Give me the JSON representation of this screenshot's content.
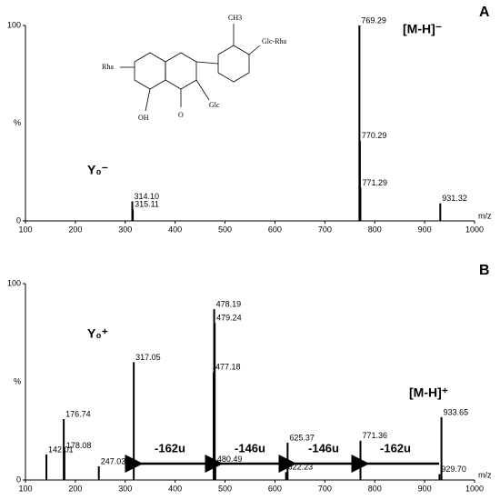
{
  "chart_data": [
    {
      "type": "bar",
      "panel": "A",
      "x_label": "m/z",
      "y_label": "%",
      "color": "#000000",
      "xlim": [
        100,
        1000
      ],
      "xticks": [
        100,
        200,
        300,
        400,
        500,
        600,
        700,
        800,
        900,
        1000
      ],
      "ylim": [
        0,
        100
      ],
      "yticks": [
        0,
        100
      ],
      "x": [
        314.1,
        315.11,
        769.29,
        770.29,
        771.29,
        931.32
      ],
      "x_labels": [
        "314.10",
        "315.11",
        "769.29",
        "770.29",
        "771.29",
        "931.32"
      ],
      "values": [
        10,
        6,
        100,
        41,
        17,
        9
      ],
      "annotations": [
        "[M-H]⁻",
        "Y₀⁻"
      ],
      "structure_labels": [
        "CH3",
        "Glc-Rha",
        "Rha",
        "OH",
        "O",
        "Glc"
      ]
    },
    {
      "type": "bar",
      "panel": "B",
      "x_label": "m/z",
      "y_label": "%",
      "color": "#000000",
      "xlim": [
        100,
        1000
      ],
      "xticks": [
        100,
        200,
        300,
        400,
        500,
        600,
        700,
        800,
        900,
        1000
      ],
      "ylim": [
        0,
        100
      ],
      "yticks": [
        0,
        100
      ],
      "x": [
        142.01,
        176.74,
        178.08,
        247.03,
        317.05,
        477.18,
        478.19,
        479.24,
        480.49,
        622.23,
        625.37,
        771.36,
        929.7,
        933.65
      ],
      "x_labels": [
        "142.01",
        "176.74",
        "178.08",
        "247.03",
        "317.05",
        "477.18",
        "478.19",
        "479.24",
        "480.49",
        "622.23",
        "625.37",
        "771.36",
        "929.70",
        "933.65"
      ],
      "values": [
        13,
        31,
        15,
        7,
        60,
        55,
        87,
        80,
        8,
        4,
        19,
        20,
        3,
        32
      ],
      "annotations": [
        "Y₀⁺",
        "[M-H]⁺"
      ],
      "losses": [
        "-162u",
        "-146u",
        "-146u",
        "-162u"
      ]
    }
  ]
}
